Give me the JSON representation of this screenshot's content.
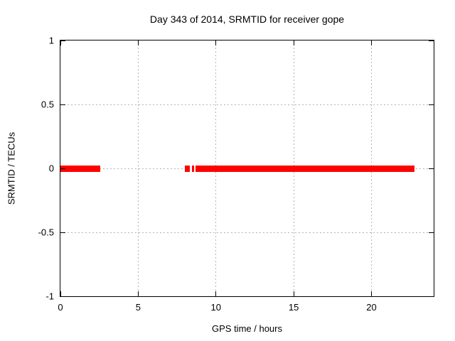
{
  "chart_data": {
    "type": "line",
    "title": "Day 343 of 2014, SRMTID for receiver gope",
    "xlabel": "GPS time / hours",
    "ylabel": "SRMTID / TECUs",
    "xlim": [
      0,
      24
    ],
    "ylim": [
      -1,
      1
    ],
    "grid": "dotted",
    "legend": "none",
    "xticks": [
      {
        "value": 0,
        "label": "0"
      },
      {
        "value": 5,
        "label": "5"
      },
      {
        "value": 10,
        "label": "10"
      },
      {
        "value": 15,
        "label": "15"
      },
      {
        "value": 20,
        "label": "20"
      }
    ],
    "yticks": [
      {
        "value": -1,
        "label": "-1"
      },
      {
        "value": -0.5,
        "label": "-0.5"
      },
      {
        "value": 0,
        "label": "0"
      },
      {
        "value": 0.5,
        "label": "0.5"
      },
      {
        "value": 1,
        "label": "1"
      }
    ],
    "gridlines": {
      "x": [
        5,
        10,
        15,
        20
      ],
      "y": [
        -0.5,
        0,
        0.5
      ]
    },
    "series": [
      {
        "name": "SRMTID",
        "color": "#ff0000",
        "line_thickness_px": 9,
        "segments": [
          {
            "x1": 0.0,
            "x2": 2.55,
            "y": 0
          },
          {
            "x1": 8.0,
            "x2": 8.3,
            "y": 0
          },
          {
            "x1": 8.45,
            "x2": 8.6,
            "y": 0
          },
          {
            "x1": 8.7,
            "x2": 22.75,
            "y": 0
          }
        ]
      }
    ]
  },
  "colors": {
    "background": "#ffffff",
    "frame": "#000000",
    "grid": "#b3b3b3",
    "text": "#000000",
    "line": "#ff0000"
  }
}
